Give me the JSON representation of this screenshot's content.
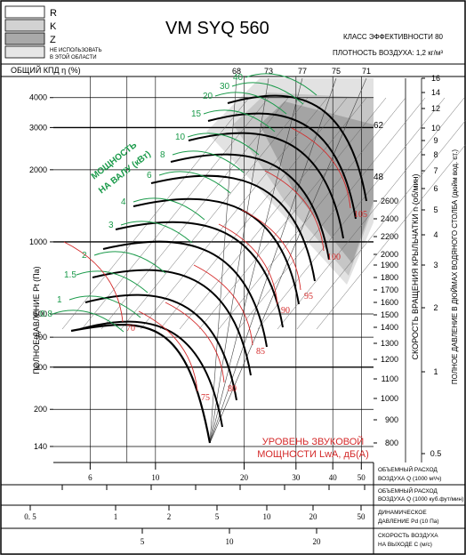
{
  "header": {
    "title": "VM SYQ 560",
    "efficiency_class": "КЛАСС ЭФФЕКТИВНОСТИ 80",
    "air_density": "ПЛОТНОСТЬ ВОЗДУХА: 1,2 кг/м³"
  },
  "legend": [
    {
      "code": "R",
      "label": "R",
      "color": "#ffffff"
    },
    {
      "code": "K",
      "label": "K",
      "color": "#d2d2d2"
    },
    {
      "code": "Z",
      "label": "Z",
      "color": "#a9a9a9"
    },
    {
      "code": "NA",
      "label": "НЕ ИСПОЛЬЗОВАТЬ В ЭТОЙ ОБЛАСТИ",
      "color": "#e6e6e6"
    }
  ],
  "colors": {
    "power": "#1a9a4a",
    "sound": "#d42a2a",
    "curve": "#000000",
    "grid": "#555555"
  },
  "chart_data": {
    "type": "line",
    "title": "VM SYQ 560",
    "y_left_label": "ПОЛНОЕ ДАВЛЕНИЕ Pt (Па)",
    "y_left_scale": "log",
    "y_left_range": [
      120,
      4900
    ],
    "y_left_ticks": [
      140,
      200,
      300,
      400,
      500,
      1000,
      2000,
      3000,
      4000
    ],
    "x_flow_scale": "log",
    "x_flow_range": [
      4.5,
      55
    ],
    "rpm_label": "СКОРОСТЬ ВРАЩЕНИЯ КРЫЛЬЧАТКИ n (об/мин)",
    "rpm_ticks": [
      800,
      900,
      1000,
      1100,
      1200,
      1300,
      1400,
      1500,
      1600,
      1700,
      1800,
      1900,
      2000,
      2200,
      2400,
      2600
    ],
    "inch_label": "ПОЛНОЕ ДАВЛЕНИЕ В ДЮЙМАХ ВОДЯНОГО СТОЛБА (дюйм вод. ст.)",
    "inch_ticks": [
      "0.5",
      "1",
      "2",
      "3",
      "4",
      "5",
      "6",
      "7",
      "8",
      "9",
      "10",
      "12",
      "14",
      "16"
    ],
    "efficiency_label": "ОБЩИЙ КПД η (%)",
    "efficiency_ticks": [
      "68",
      "73",
      "77",
      "75",
      "71"
    ],
    "power_label": "МОЩНОСТЬ НА ВАЛУ (кВт)",
    "power_values": [
      "0.8",
      "1",
      "1.5",
      "2",
      "3",
      "4",
      "6",
      "8",
      "10",
      "15",
      "20",
      "30",
      "40"
    ],
    "sound_label_line1": "УРОВЕНЬ ЗВУКОВОЙ",
    "sound_label_line2": "МОЩНОСТИ LwA, дБ(А)",
    "sound_values": [
      "70",
      "75",
      "80",
      "85",
      "90",
      "95",
      "100",
      "105"
    ],
    "boundary_values": [
      "48",
      "62"
    ],
    "bottom_axes": [
      {
        "label_line1": "ОБЪЕМНЫЙ РАСХОД",
        "label_line2": "ВОЗДУХА Q (1000 м³/ч)",
        "ticks": [
          "6",
          "10",
          "20",
          "30",
          "40",
          "50"
        ]
      },
      {
        "label_line1": "ОБЪЕМНЫЙ РАСХОД",
        "label_line2": "ВОЗДУХА Q (1000 куб.фут/мин)",
        "ticks": []
      },
      {
        "label_line1": "ДИНАМИЧЕСКОЕ",
        "label_line2": "ДАВЛЕНИЕ Pd (10 Па)",
        "ticks": [
          "0. 5",
          "1",
          "2",
          "5",
          "10",
          "20",
          "50"
        ]
      },
      {
        "label_line1": "СКОРОСТЬ ВОЗДУХА",
        "label_line2": "НА ВЫХОДЕ С (м/с)",
        "ticks": [
          "5",
          "10",
          "20"
        ]
      }
    ]
  }
}
